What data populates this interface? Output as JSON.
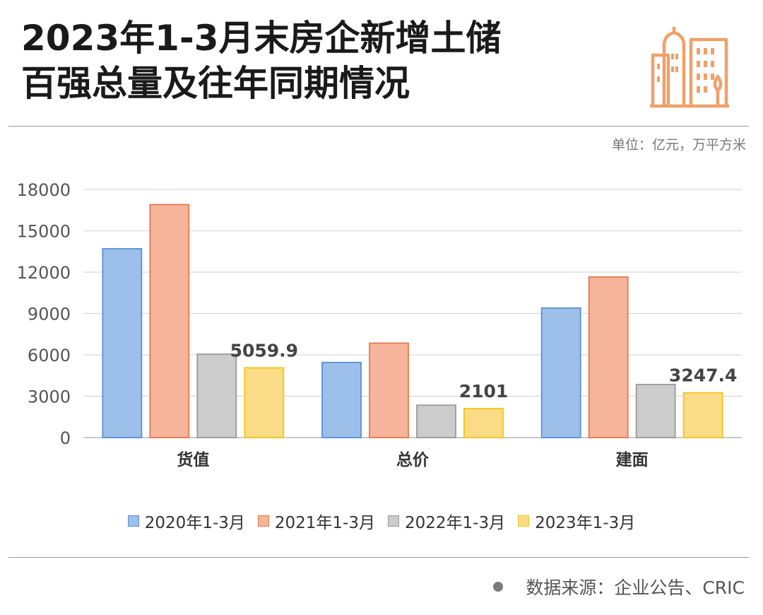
{
  "title": {
    "line1": "2023年1-3月末房企新增土储",
    "line2": "百强总量及往年同期情况"
  },
  "unit": "单位：亿元，万平方米",
  "source": "数据来源：企业公告、CRIC",
  "logo_icon": "city-buildings-icon",
  "colors": {
    "s2020": "#9dc0ea",
    "s2020_edge": "#5b8fd6",
    "s2021": "#f6b59a",
    "s2021_edge": "#e07a50",
    "s2022": "#cccccc",
    "s2022_edge": "#9a9a9a",
    "s2023": "#fbdc86",
    "s2023_edge": "#f0c419",
    "logo": "#f0a06a"
  },
  "chart_data": {
    "type": "bar",
    "categories": [
      "货值",
      "总价",
      "建面"
    ],
    "series": [
      {
        "name": "2020年1-3月",
        "values": [
          13700,
          5450,
          9400
        ]
      },
      {
        "name": "2021年1-3月",
        "values": [
          16900,
          6850,
          11650
        ]
      },
      {
        "name": "2022年1-3月",
        "values": [
          6050,
          2350,
          3850
        ]
      },
      {
        "name": "2023年1-3月",
        "values": [
          5059.9,
          2101,
          3247.4
        ]
      }
    ],
    "data_labels": [
      {
        "category": 0,
        "series": 3,
        "text": "5059.9"
      },
      {
        "category": 1,
        "series": 3,
        "text": "2101"
      },
      {
        "category": 2,
        "series": 3,
        "text": "3247.4"
      }
    ],
    "yticks": [
      0,
      3000,
      6000,
      9000,
      12000,
      15000,
      18000
    ],
    "ylim": [
      0,
      18000
    ],
    "grid": true,
    "legend_position": "bottom"
  }
}
